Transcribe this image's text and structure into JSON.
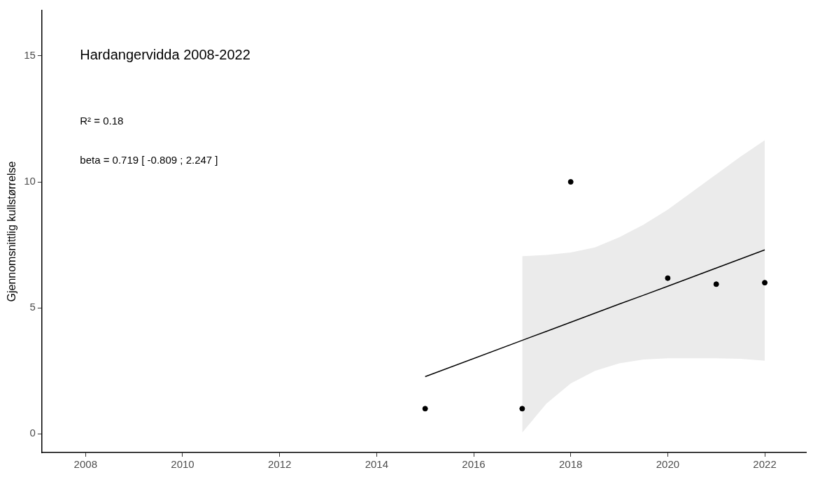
{
  "chart_data": {
    "type": "scatter",
    "title": "Hardangervidda 2008-2022",
    "ylabel": "Gjennomsnittlig kullstørrelse",
    "annotations": [
      "R² = 0.18",
      "beta = 0.719 [ -0.809 ; 2.247 ]"
    ],
    "x": [
      2015,
      2017,
      2018,
      2020,
      2021,
      2022
    ],
    "series": [
      {
        "color": "#000000",
        "values": [
          1.0,
          1.0,
          10.0,
          6.18,
          5.94,
          6.0
        ]
      },
      {
        "type": "line",
        "color": "#000000",
        "x": [
          2015,
          2017,
          2017.5,
          2018,
          2018.5,
          2019,
          2019.5,
          2020,
          2020.5,
          2021,
          2021.5,
          2022
        ],
        "values": [
          2.27,
          3.71,
          4.07,
          4.43,
          4.79,
          5.15,
          5.5,
          5.86,
          6.22,
          6.58,
          6.94,
          7.3
        ],
        "lower": [
          null,
          0.05,
          1.2,
          2.0,
          2.5,
          2.8,
          2.95,
          3.0,
          3.0,
          3.0,
          2.98,
          2.9
        ],
        "upper": [
          null,
          7.05,
          7.1,
          7.2,
          7.4,
          7.8,
          8.3,
          8.9,
          9.6,
          10.3,
          11.0,
          11.65
        ],
        "marker": "none"
      }
    ],
    "marker": "circle",
    "line_style": "solid",
    "grid": false,
    "legend": false,
    "xlim": [
      2007.1,
      2022.85
    ],
    "xticks": [
      2008,
      2010,
      2012,
      2014,
      2016,
      2018,
      2020,
      2022
    ],
    "ylim": [
      -0.74,
      16.8
    ],
    "yticks": [
      0,
      5,
      10,
      15
    ]
  }
}
